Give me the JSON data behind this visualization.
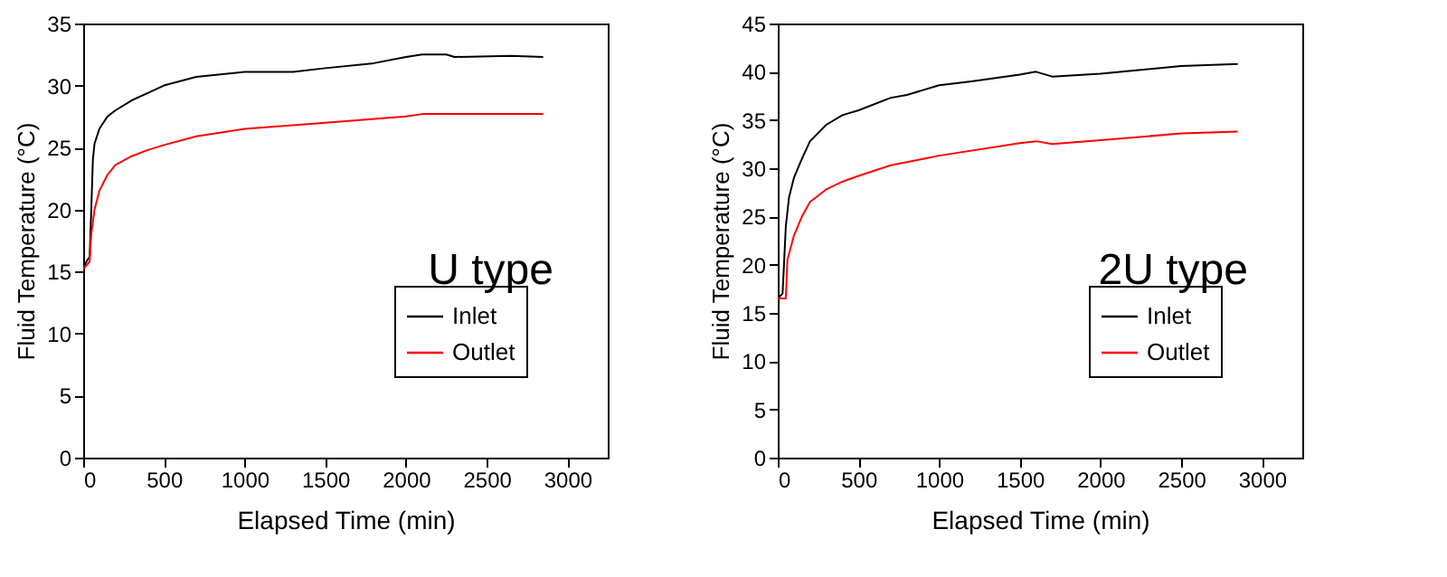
{
  "chart_data": [
    {
      "type": "line",
      "xlabel": "Elapsed Time (min)",
      "ylabel": "Fluid Temperature (°C)",
      "annotations": [
        "U type"
      ],
      "xlim": [
        0,
        3250
      ],
      "xticks": [
        0,
        500,
        1000,
        1500,
        2000,
        2500,
        3000
      ],
      "ylim": [
        0,
        35
      ],
      "yticks": [
        0,
        5,
        10,
        15,
        20,
        25,
        30,
        35
      ],
      "grid": false,
      "legend": "bottom right",
      "marker": "none",
      "line_style": "solid",
      "series": [
        {
          "name": "Inlet",
          "color": "#000000",
          "x": [
            0,
            20,
            40,
            50,
            60,
            70,
            100,
            150,
            200,
            300,
            400,
            500,
            700,
            1000,
            1300,
            1500,
            1800,
            2000,
            2100,
            2250,
            2300,
            2650,
            2850
          ],
          "values": [
            15.2,
            15.8,
            16.2,
            20,
            24,
            25.3,
            26.5,
            27.5,
            28,
            28.8,
            29.4,
            30,
            30.7,
            31.1,
            31.1,
            31.4,
            31.8,
            32.3,
            32.5,
            32.5,
            32.3,
            32.4,
            32.3
          ]
        },
        {
          "name": "Outlet",
          "color": "#ff0000",
          "x": [
            0,
            40,
            50,
            70,
            100,
            150,
            200,
            300,
            400,
            500,
            700,
            1000,
            1500,
            2000,
            2100,
            2850
          ],
          "values": [
            15.2,
            15.8,
            18,
            20,
            21.5,
            22.8,
            23.6,
            24.3,
            24.8,
            25.2,
            25.9,
            26.5,
            27,
            27.5,
            27.7,
            27.7
          ]
        }
      ]
    },
    {
      "type": "line",
      "xlabel": "Elapsed Time (min)",
      "ylabel": "Fluid Temperature (°C)",
      "annotations": [
        "2U type"
      ],
      "xlim": [
        0,
        3250
      ],
      "xticks": [
        0,
        500,
        1000,
        1500,
        2000,
        2500,
        3000
      ],
      "ylim": [
        0,
        45
      ],
      "yticks": [
        0,
        5,
        10,
        15,
        20,
        25,
        30,
        35,
        40,
        45
      ],
      "grid": false,
      "legend": "bottom right",
      "marker": "none",
      "line_style": "solid",
      "series": [
        {
          "name": "Inlet",
          "color": "#000000",
          "x": [
            0,
            30,
            50,
            70,
            100,
            150,
            200,
            300,
            400,
            500,
            700,
            800,
            1000,
            1200,
            1500,
            1600,
            1700,
            2000,
            2500,
            2850
          ],
          "values": [
            16.5,
            17,
            24,
            27,
            29,
            31,
            32.8,
            34.5,
            35.5,
            36,
            37.3,
            37.6,
            38.6,
            39,
            39.7,
            40,
            39.5,
            39.8,
            40.6,
            40.8
          ]
        },
        {
          "name": "Outlet",
          "color": "#ff0000",
          "x": [
            0,
            50,
            60,
            100,
            150,
            200,
            300,
            400,
            500,
            700,
            1000,
            1500,
            1600,
            1700,
            2000,
            2500,
            2850
          ],
          "values": [
            16.5,
            16.5,
            20.5,
            23,
            25,
            26.5,
            27.8,
            28.6,
            29.2,
            30.3,
            31.3,
            32.6,
            32.8,
            32.5,
            32.9,
            33.6,
            33.8
          ]
        }
      ]
    }
  ]
}
